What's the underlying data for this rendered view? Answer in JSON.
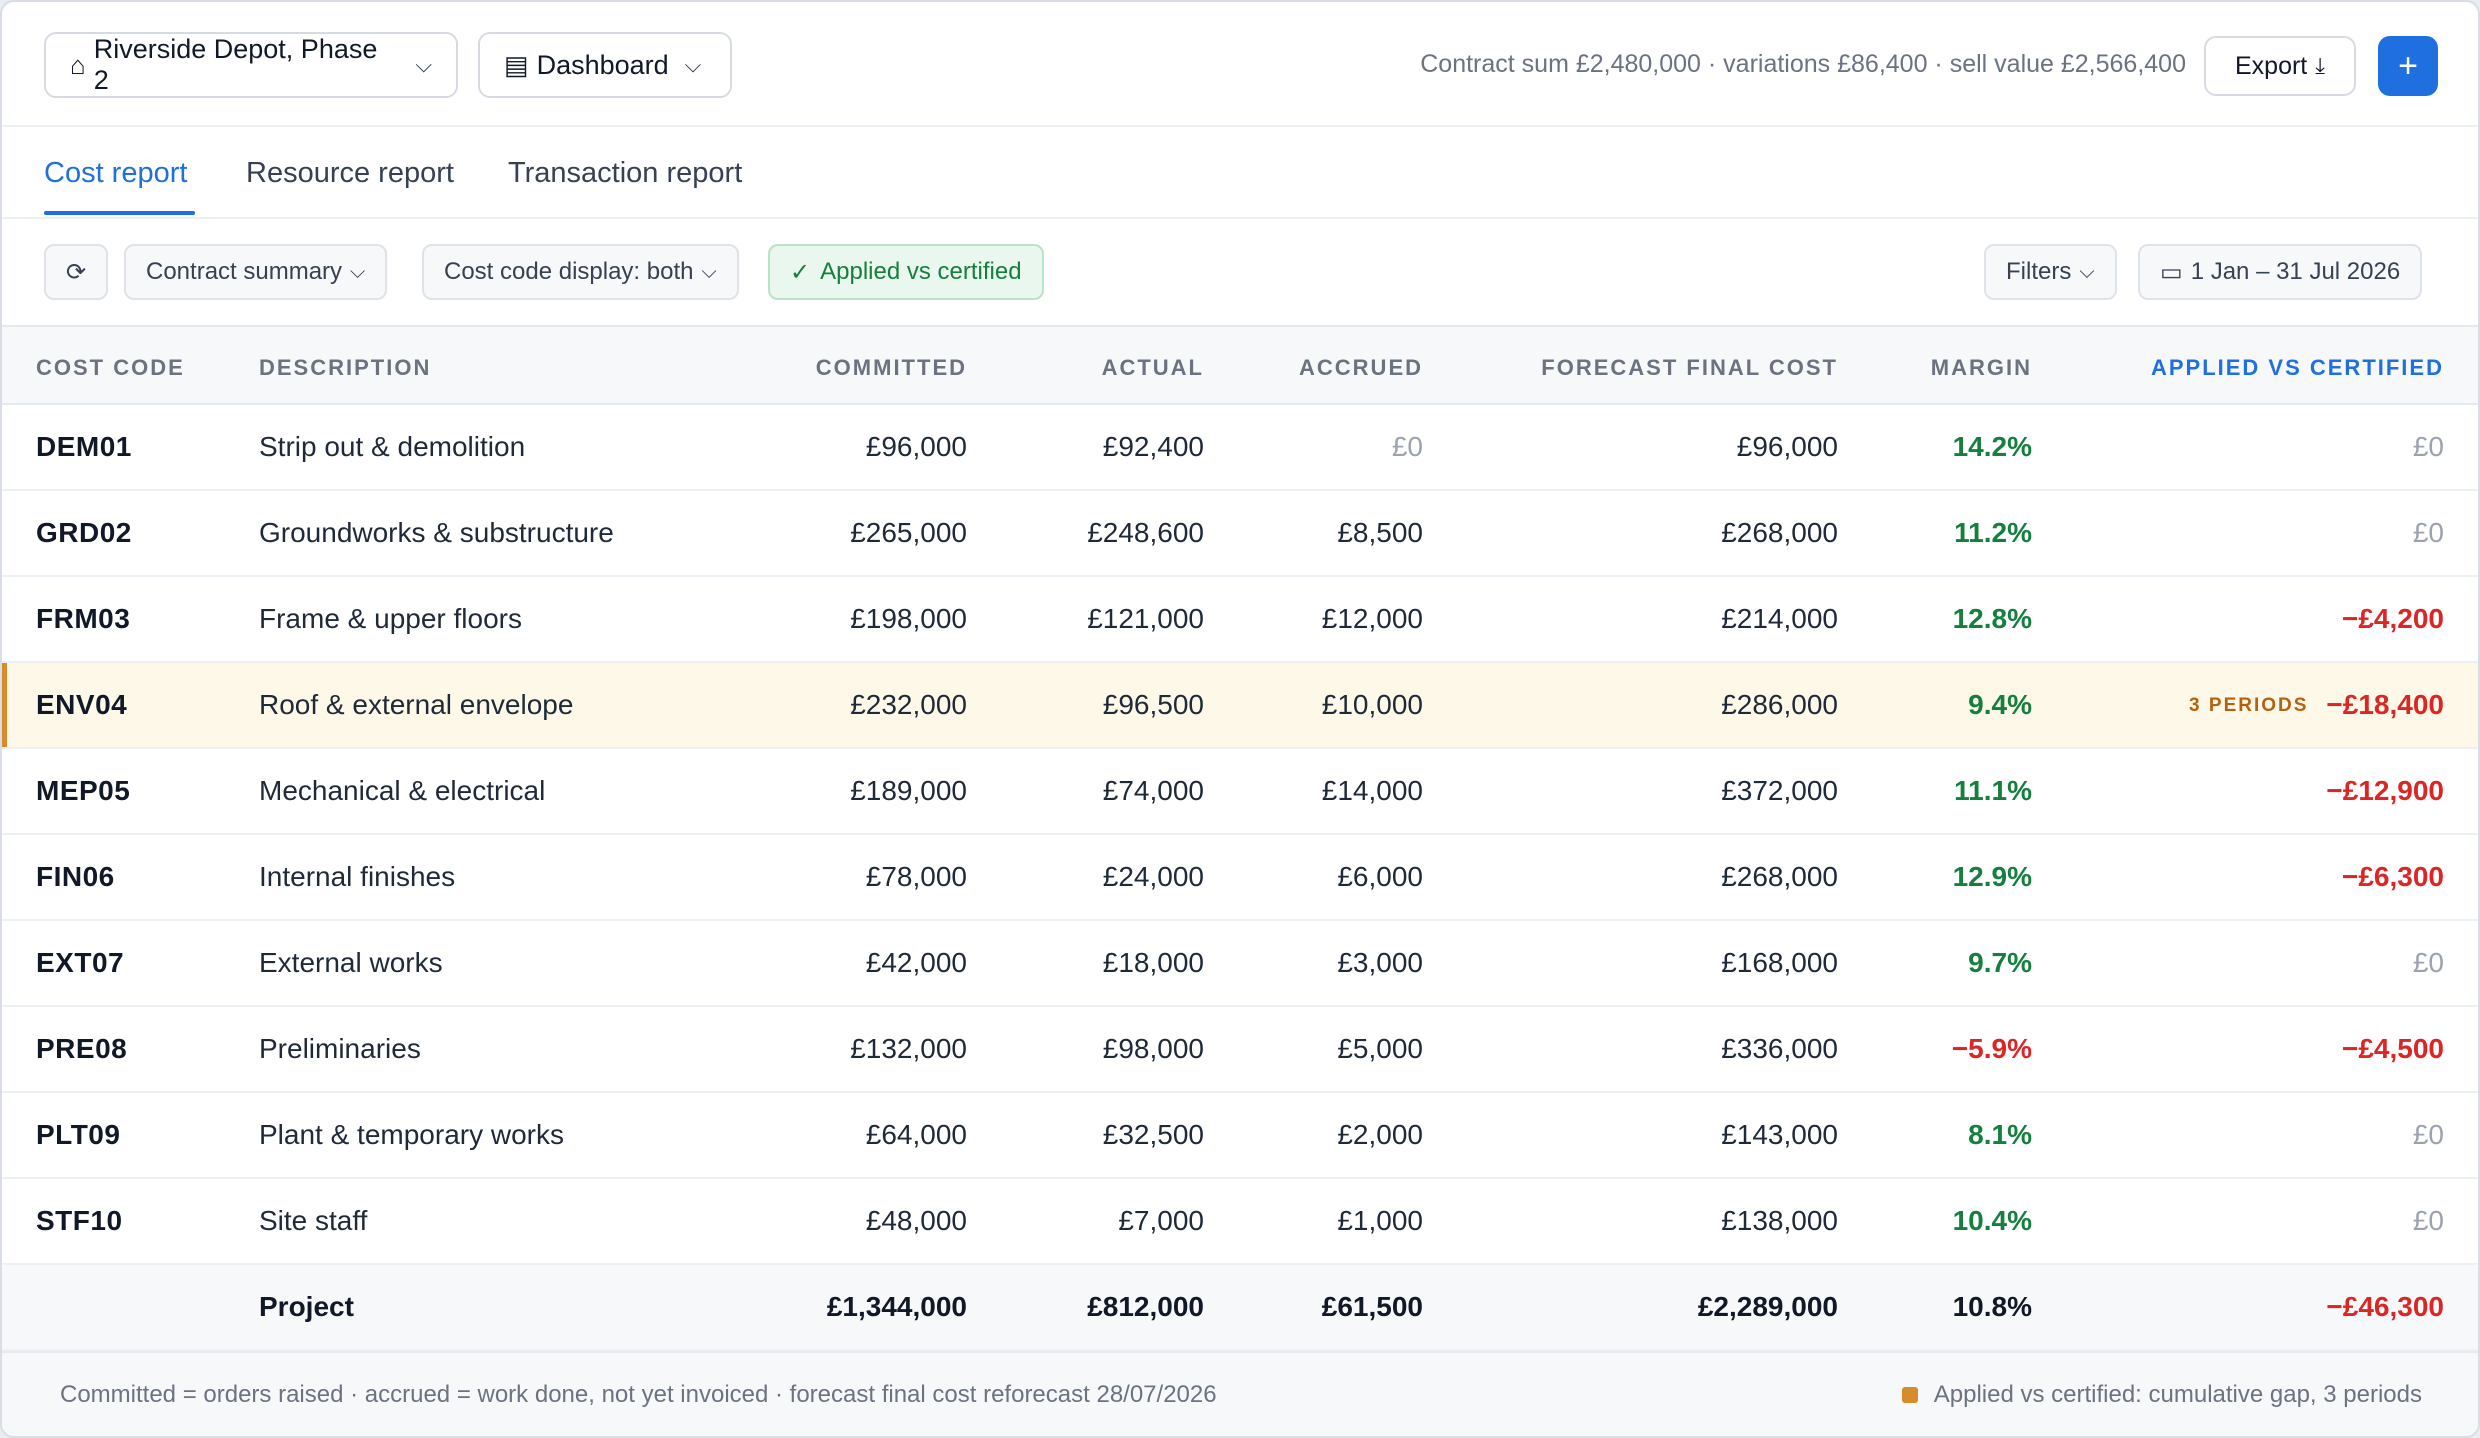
{
  "header": {
    "project_icon": "home-icon",
    "project": "Riverside Depot, Phase 2",
    "view_icon": "dashboard-icon",
    "view": "Dashboard",
    "summary": "Contract sum £2,480,000 · variations £86,400 · sell value £2,566,400",
    "export_label": "Export",
    "add_label": "+"
  },
  "tabs": [
    {
      "label": "Cost report",
      "active": true
    },
    {
      "label": "Resource report",
      "active": false
    },
    {
      "label": "Transaction report",
      "active": false
    }
  ],
  "toolbar": {
    "refresh_icon": "⟳",
    "contract_summary": "Contract summary",
    "cost_code_display": "Cost code display: both",
    "applied_vs_certified": "Applied vs certified",
    "filters": "Filters",
    "date_range": "1 Jan – 31 Jul 2026"
  },
  "columns": {
    "code": "COST CODE",
    "description": "DESCRIPTION",
    "committed": "COMMITTED",
    "actual": "ACTUAL",
    "accrued": "ACCRUED",
    "forecast": "FORECAST FINAL COST",
    "margin": "MARGIN",
    "applied": "APPLIED VS CERTIFIED"
  },
  "rows": [
    {
      "code": "DEM01",
      "description": "Strip out & demolition",
      "committed": "£96,000",
      "actual": "£92,400",
      "accrued": "£0",
      "forecast": "£96,000",
      "margin": "14.2%",
      "applied": "£0",
      "badge": ""
    },
    {
      "code": "GRD02",
      "description": "Groundworks & substructure",
      "committed": "£265,000",
      "actual": "£248,600",
      "accrued": "£8,500",
      "forecast": "£268,000",
      "margin": "11.2%",
      "applied": "£0",
      "badge": ""
    },
    {
      "code": "FRM03",
      "description": "Frame & upper floors",
      "committed": "£198,000",
      "actual": "£121,000",
      "accrued": "£12,000",
      "forecast": "£214,000",
      "margin": "12.8%",
      "applied": "−£4,200",
      "badge": ""
    },
    {
      "code": "ENV04",
      "description": "Roof & external envelope",
      "committed": "£232,000",
      "actual": "£96,500",
      "accrued": "£10,000",
      "forecast": "£286,000",
      "margin": "9.4%",
      "applied": "−£18,400",
      "badge": "3 PERIODS"
    },
    {
      "code": "MEP05",
      "description": "Mechanical & electrical",
      "committed": "£189,000",
      "actual": "£74,000",
      "accrued": "£14,000",
      "forecast": "£372,000",
      "margin": "11.1%",
      "applied": "−£12,900",
      "badge": ""
    },
    {
      "code": "FIN06",
      "description": "Internal finishes",
      "committed": "£78,000",
      "actual": "£24,000",
      "accrued": "£6,000",
      "forecast": "£268,000",
      "margin": "12.9%",
      "applied": "−£6,300",
      "badge": ""
    },
    {
      "code": "EXT07",
      "description": "External works",
      "committed": "£42,000",
      "actual": "£18,000",
      "accrued": "£3,000",
      "forecast": "£168,000",
      "margin": "9.7%",
      "applied": "£0",
      "badge": ""
    },
    {
      "code": "PRE08",
      "description": "Preliminaries",
      "committed": "£132,000",
      "actual": "£98,000",
      "accrued": "£5,000",
      "forecast": "£336,000",
      "margin": "−5.9%",
      "applied": "−£4,500",
      "badge": ""
    },
    {
      "code": "PLT09",
      "description": "Plant & temporary works",
      "committed": "£64,000",
      "actual": "£32,500",
      "accrued": "£2,000",
      "forecast": "£143,000",
      "margin": "8.1%",
      "applied": "£0",
      "badge": ""
    },
    {
      "code": "STF10",
      "description": "Site staff",
      "committed": "£48,000",
      "actual": "£7,000",
      "accrued": "£1,000",
      "forecast": "£138,000",
      "margin": "10.4%",
      "applied": "£0",
      "badge": ""
    }
  ],
  "total": {
    "label": "Project",
    "committed": "£1,344,000",
    "actual": "£812,000",
    "accrued": "£61,500",
    "forecast": "£2,289,000",
    "margin": "10.8%",
    "applied": "−£46,300"
  },
  "footer": {
    "note": "Committed = orders raised · accrued = work done, not yet invoiced · forecast final cost reforecast 28/07/2026",
    "legend": "Applied vs certified: cumulative gap, 3 periods"
  },
  "colors": {
    "accent": "#1f6fe0",
    "positive": "#15803d",
    "negative": "#dc2626",
    "flag": "#d88b2c"
  }
}
